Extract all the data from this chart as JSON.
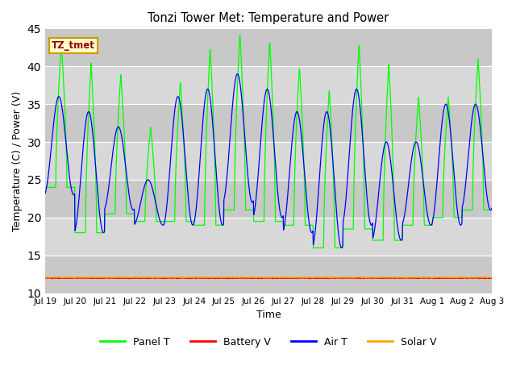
{
  "title": "Tonzi Tower Met: Temperature and Power",
  "xlabel": "Time",
  "ylabel": "Temperature (C) / Power (V)",
  "ylim": [
    10,
    45
  ],
  "yticks": [
    10,
    15,
    20,
    25,
    30,
    35,
    40,
    45
  ],
  "x_tick_labels": [
    "Jul 19",
    "Jul 20",
    "Jul 21",
    "Jul 22",
    "Jul 23",
    "Jul 24",
    "Jul 25",
    "Jul 26",
    "Jul 27",
    "Jul 28",
    "Jul 29",
    "Jul 30",
    "Jul 31",
    "Aug 1",
    "Aug 2",
    "Aug 3"
  ],
  "legend_label": "TZ_tmet",
  "bg_color": "#d8d8d8",
  "band_color_light": "#e8e8e8",
  "band_color_dark": "#d0d0d0",
  "grid_color": "#ffffff",
  "panel_t_color": "#00ff00",
  "battery_v_color": "#ff0000",
  "air_t_color": "#0000ff",
  "solar_v_color": "#ffa500",
  "battery_v_level": 12.0,
  "solar_v_level": 12.1,
  "n_days": 15,
  "samples_per_day": 96,
  "panel_t_peaks": [
    43,
    40.5,
    39,
    32,
    38,
    42.5,
    44.5,
    43.5,
    40,
    37,
    43,
    40.5,
    36,
    36,
    41,
    41
  ],
  "panel_t_troughs": [
    24,
    18,
    20.5,
    19.5,
    19.5,
    19,
    21,
    19.5,
    19,
    16,
    18.5,
    17,
    19,
    20,
    21,
    22
  ],
  "air_t_peaks": [
    36,
    34,
    32,
    25,
    36,
    37,
    39,
    37,
    34,
    34,
    37,
    30,
    30,
    35,
    35,
    34
  ],
  "air_t_troughs": [
    23,
    18,
    21,
    19,
    19,
    19,
    22,
    20,
    18,
    16,
    19,
    17,
    19,
    19,
    21,
    22
  ]
}
